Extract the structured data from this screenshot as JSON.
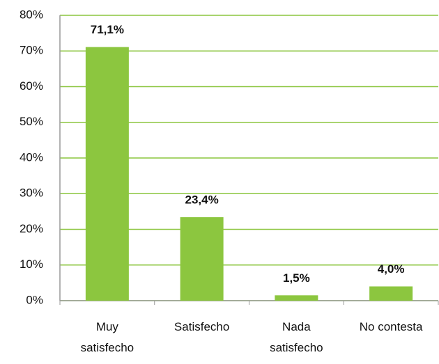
{
  "chart_data": {
    "type": "bar",
    "categories": [
      "Muy satisfecho",
      "Satisfecho",
      "Nada satisfecho",
      "No contesta"
    ],
    "values": [
      71.1,
      23.4,
      1.5,
      4.0
    ],
    "value_labels": [
      "71,1%",
      "23,4%",
      "1,5%",
      "4,0%"
    ],
    "color": "#8cc63f",
    "ylim": [
      0,
      80
    ],
    "yticks": [
      {
        "value": 0,
        "label": "0%"
      },
      {
        "value": 10,
        "label": "10%"
      },
      {
        "value": 20,
        "label": "20%"
      },
      {
        "value": 30,
        "label": "30%"
      },
      {
        "value": 40,
        "label": "40%"
      },
      {
        "value": 50,
        "label": "50%"
      },
      {
        "value": 60,
        "label": "60%"
      },
      {
        "value": 70,
        "label": "70%"
      },
      {
        "value": 80,
        "label": "80%"
      }
    ],
    "grid": true,
    "grid_color": "#8cc63f"
  }
}
